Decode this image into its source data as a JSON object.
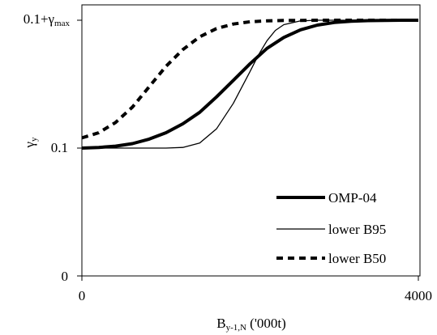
{
  "chart_data": {
    "type": "line",
    "title": "",
    "xlabel": {
      "base": "B",
      "subscript": "y-1,N",
      "suffix": " ('000t)"
    },
    "ylabel": {
      "base": "γ",
      "subscript": "y"
    },
    "xlim": [
      0,
      4000
    ],
    "ylim": [
      0,
      0.2
    ],
    "x_ticks": [
      {
        "value": 0,
        "label": "0"
      },
      {
        "value": 4000,
        "label": "4000"
      }
    ],
    "y_ticks": [
      {
        "value": 0,
        "label": "0"
      },
      {
        "value": 0.1,
        "label": "0.1"
      },
      {
        "value": 0.2,
        "label_base": "0.1+γ",
        "label_subscript": "max"
      }
    ],
    "grid": false,
    "legend": "bottom-right",
    "series": [
      {
        "name": "OMP-04",
        "style": "solid-thick",
        "color": "#000000",
        "x": [
          0,
          200,
          400,
          600,
          800,
          1000,
          1200,
          1400,
          1600,
          1800,
          2000,
          2200,
          2400,
          2600,
          2800,
          3000,
          3200,
          3400,
          3600,
          3800,
          4000
        ],
        "y": [
          0.1,
          0.1005,
          0.1015,
          0.1035,
          0.107,
          0.112,
          0.119,
          0.128,
          0.14,
          0.153,
          0.166,
          0.178,
          0.1865,
          0.1925,
          0.1962,
          0.1982,
          0.1992,
          0.1997,
          0.1999,
          0.2,
          0.2
        ]
      },
      {
        "name": "lower B95",
        "style": "solid-thin",
        "color": "#000000",
        "x": [
          0,
          200,
          400,
          600,
          800,
          1000,
          1200,
          1400,
          1600,
          1800,
          2000,
          2100,
          2200,
          2300,
          2400,
          2600,
          2800,
          3000,
          3200,
          3400,
          3600,
          3800,
          4000
        ],
        "y": [
          0.1,
          0.1,
          0.1,
          0.1,
          0.1,
          0.1,
          0.1005,
          0.104,
          0.115,
          0.135,
          0.16,
          0.173,
          0.184,
          0.192,
          0.1965,
          0.1995,
          0.2,
          0.2,
          0.2,
          0.2,
          0.2,
          0.2,
          0.2
        ]
      },
      {
        "name": "lower B50",
        "style": "dashed",
        "color": "#000000",
        "x": [
          0,
          200,
          400,
          600,
          800,
          1000,
          1200,
          1400,
          1600,
          1800,
          2000,
          2200,
          2400,
          2600,
          2800,
          3000,
          3200,
          3400,
          3600,
          3800,
          4000
        ],
        "y": [
          0.108,
          0.112,
          0.12,
          0.132,
          0.148,
          0.164,
          0.177,
          0.187,
          0.1935,
          0.197,
          0.1988,
          0.1995,
          0.1998,
          0.1999,
          0.2,
          0.2,
          0.2,
          0.2,
          0.2,
          0.2,
          0.2
        ]
      }
    ]
  }
}
